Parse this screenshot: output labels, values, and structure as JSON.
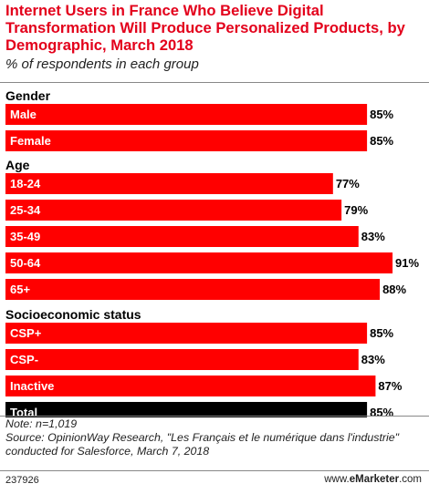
{
  "chart_data": {
    "type": "bar",
    "orientation": "horizontal",
    "title": "Internet Users in France Who Believe Digital Transformation Will Produce Personalized Products, by Demographic, March 2018",
    "subtitle": "% of respondents in each group",
    "xlim": [
      0,
      100
    ],
    "groups": [
      {
        "label": "Gender",
        "items": [
          {
            "category": "Male",
            "value": 85,
            "value_label": "85%",
            "highlight": false
          },
          {
            "category": "Female",
            "value": 85,
            "value_label": "85%",
            "highlight": false
          }
        ]
      },
      {
        "label": "Age",
        "items": [
          {
            "category": "18-24",
            "value": 77,
            "value_label": "77%",
            "highlight": false
          },
          {
            "category": "25-34",
            "value": 79,
            "value_label": "79%",
            "highlight": false
          },
          {
            "category": "35-49",
            "value": 83,
            "value_label": "83%",
            "highlight": false
          },
          {
            "category": "50-64",
            "value": 91,
            "value_label": "91%",
            "highlight": false
          },
          {
            "category": "65+",
            "value": 88,
            "value_label": "88%",
            "highlight": false
          }
        ]
      },
      {
        "label": "Socioeconomic status",
        "items": [
          {
            "category": "CSP+",
            "value": 85,
            "value_label": "85%",
            "highlight": false
          },
          {
            "category": "CSP-",
            "value": 83,
            "value_label": "83%",
            "highlight": false
          },
          {
            "category": "Inactive",
            "value": 87,
            "value_label": "87%",
            "highlight": false
          },
          {
            "category": "Total",
            "value": 85,
            "value_label": "85%",
            "highlight": true
          }
        ]
      }
    ],
    "colors": {
      "bar": "#ff0000",
      "total_bar": "#000000"
    }
  },
  "note": "Note: n=1,019",
  "source": "Source: OpinionWay Research, \"Les Français et le numérique dans l'industrie\" conducted for Salesforce, March 7, 2018",
  "footer": {
    "chart_id": "237926",
    "brand_prefix": "www.",
    "brand_name": "eMarketer",
    "brand_suffix": ".com"
  }
}
